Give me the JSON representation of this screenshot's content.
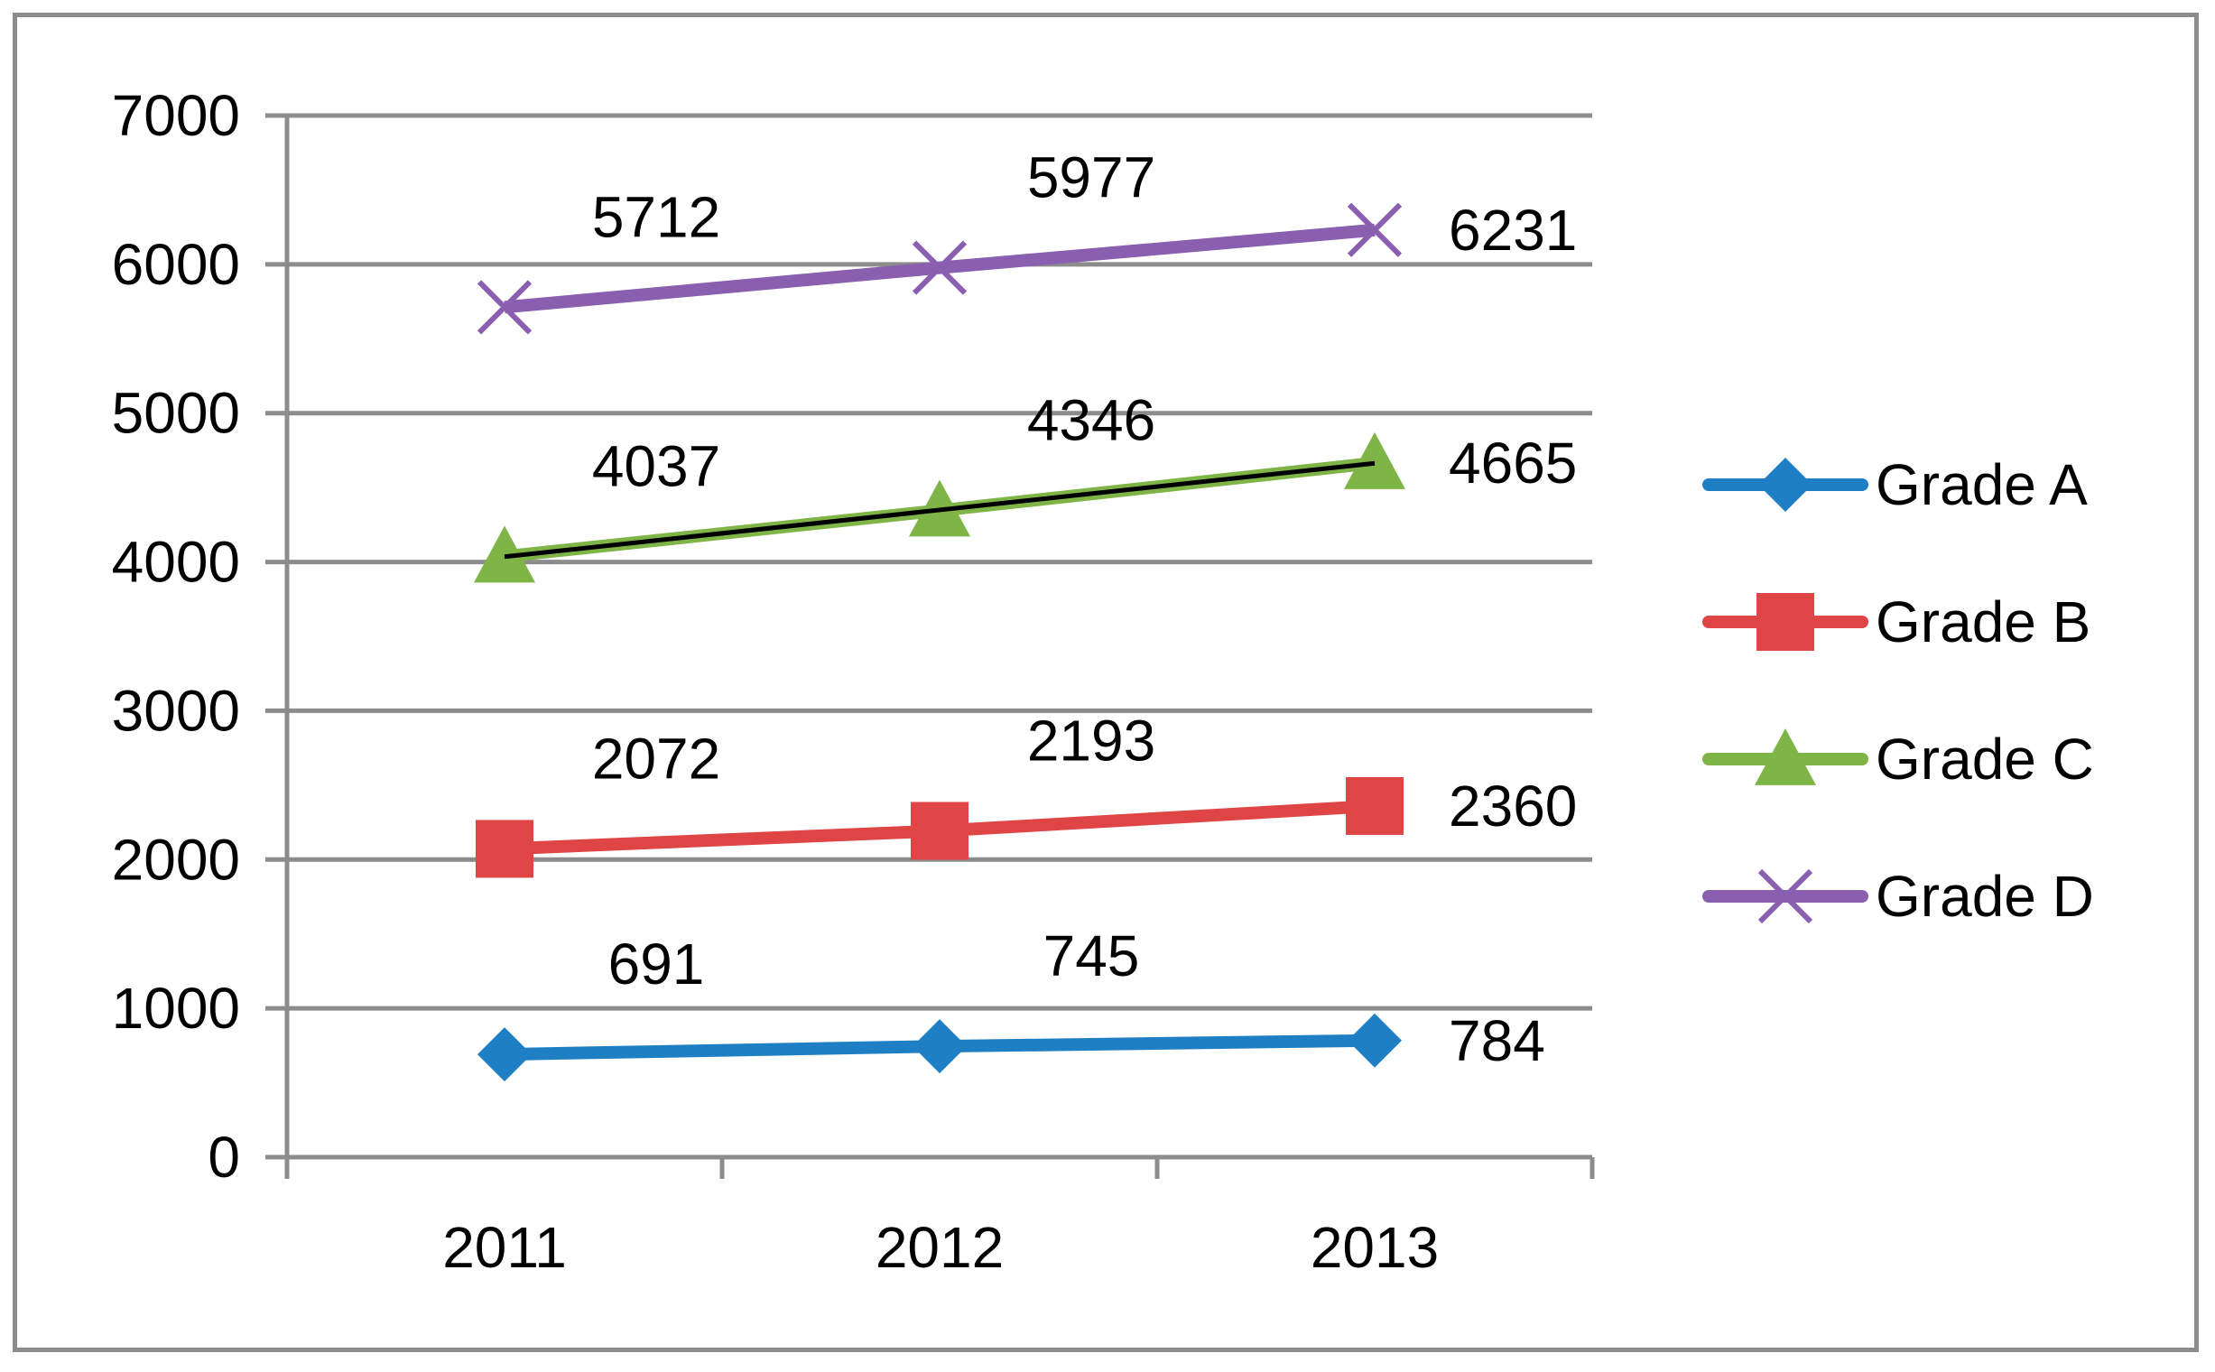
{
  "chart_data": {
    "type": "line",
    "title": "",
    "xlabel": "",
    "ylabel": "",
    "categories": [
      "2011",
      "2012",
      "2013"
    ],
    "ylim": [
      0,
      7000
    ],
    "yticks": [
      "0",
      "1000",
      "2000",
      "3000",
      "4000",
      "5000",
      "6000",
      "7000"
    ],
    "grid": true,
    "legend_position": "right",
    "series": [
      {
        "name": "Grade A",
        "values": [
          691,
          745,
          784
        ],
        "color": "#1f7fc4",
        "marker": "diamond",
        "labels": [
          "691",
          "745",
          "784"
        ]
      },
      {
        "name": "Grade B",
        "values": [
          2072,
          2193,
          2360
        ],
        "color": "#e04545",
        "marker": "square",
        "labels": [
          "2072",
          "2193",
          "2360"
        ]
      },
      {
        "name": "Grade C",
        "values": [
          4037,
          4346,
          4665
        ],
        "color": "#7fb446",
        "marker": "triangle",
        "labels": [
          "4037",
          "4346",
          "4665"
        ]
      },
      {
        "name": "Grade D",
        "values": [
          5712,
          5977,
          6231
        ],
        "color": "#8a5fb0",
        "marker": "x",
        "labels": [
          "5712",
          "5977",
          "6231"
        ]
      }
    ],
    "trendline": {
      "series": "Grade C",
      "color": "#000000"
    }
  }
}
